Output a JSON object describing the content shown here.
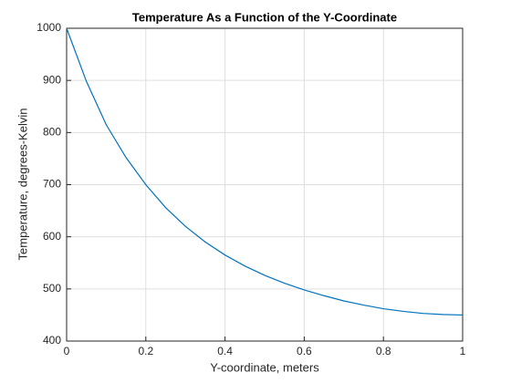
{
  "chart_data": {
    "type": "line",
    "title": "Temperature As a Function of the Y-Coordinate",
    "x_label": "Y-coordinate, meters",
    "y_label": "Temperature, degrees-Kelvin",
    "x": [
      0,
      0.05,
      0.1,
      0.15,
      0.2,
      0.25,
      0.3,
      0.35,
      0.4,
      0.45,
      0.5,
      0.55,
      0.6,
      0.65,
      0.7,
      0.75,
      0.8,
      0.85,
      0.9,
      0.95,
      1
    ],
    "series": [
      {
        "color": "#0072bd",
        "values": [
          1000,
          898,
          815,
          752,
          700,
          656,
          620,
          590,
          565,
          544,
          526,
          511,
          498,
          487,
          477,
          469,
          462,
          457,
          453,
          451,
          450
        ]
      }
    ],
    "xlim": [
      0,
      1
    ],
    "xticks": [
      0,
      0.2,
      0.4,
      0.6,
      0.8,
      1
    ],
    "ylim": [
      400,
      1000
    ],
    "yticks": [
      400,
      500,
      600,
      700,
      800,
      900,
      1000
    ],
    "grid": true
  }
}
